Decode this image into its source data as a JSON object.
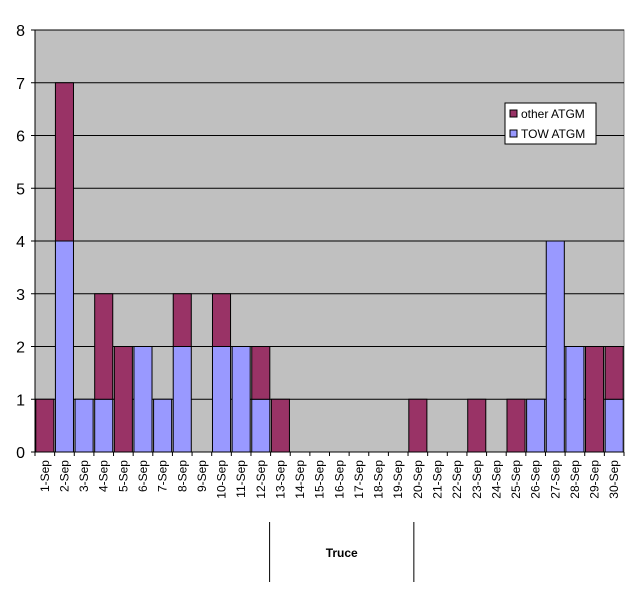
{
  "chart_data": {
    "type": "bar",
    "stacked": true,
    "categories": [
      "1-Sep",
      "2-Sep",
      "3-Sep",
      "4-Sep",
      "5-Sep",
      "6-Sep",
      "7-Sep",
      "8-Sep",
      "9-Sep",
      "10-Sep",
      "11-Sep",
      "12-Sep",
      "13-Sep",
      "14-Sep",
      "15-Sep",
      "16-Sep",
      "17-Sep",
      "18-Sep",
      "19-Sep",
      "20-Sep",
      "21-Sep",
      "22-Sep",
      "23-Sep",
      "24-Sep",
      "25-Sep",
      "26-Sep",
      "27-Sep",
      "28-Sep",
      "29-Sep",
      "30-Sep"
    ],
    "series": [
      {
        "name": "TOW ATGM",
        "color": "#9999ff",
        "values": [
          0,
          4,
          1,
          1,
          0,
          2,
          1,
          2,
          0,
          2,
          2,
          1,
          0,
          0,
          0,
          0,
          0,
          0,
          0,
          0,
          0,
          0,
          0,
          0,
          0,
          1,
          4,
          2,
          0,
          1
        ]
      },
      {
        "name": "other ATGM",
        "color": "#993366",
        "values": [
          1,
          3,
          0,
          2,
          2,
          0,
          0,
          1,
          0,
          1,
          0,
          1,
          1,
          0,
          0,
          0,
          0,
          0,
          0,
          1,
          0,
          0,
          1,
          0,
          1,
          0,
          0,
          0,
          2,
          1
        ]
      }
    ],
    "ylim": [
      0,
      8
    ],
    "yticks": [
      0,
      1,
      2,
      3,
      4,
      5,
      6,
      7,
      8
    ],
    "grid": true,
    "plot_background": "#c0c0c0",
    "legend_position": "top-right",
    "legend_order": [
      "other ATGM",
      "TOW ATGM"
    ],
    "annotations": [
      {
        "text": "Truce",
        "from": "13-Sep",
        "to": "20-Sep"
      }
    ]
  }
}
